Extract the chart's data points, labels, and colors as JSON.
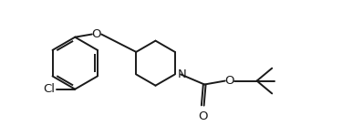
{
  "bg_color": "#ffffff",
  "line_color": "#1a1a1a",
  "line_width": 1.4,
  "font_size": 9.5,
  "figsize": [
    3.98,
    1.38
  ],
  "dpi": 100,
  "xlim": [
    0,
    10.0
  ],
  "ylim": [
    0,
    3.45
  ]
}
